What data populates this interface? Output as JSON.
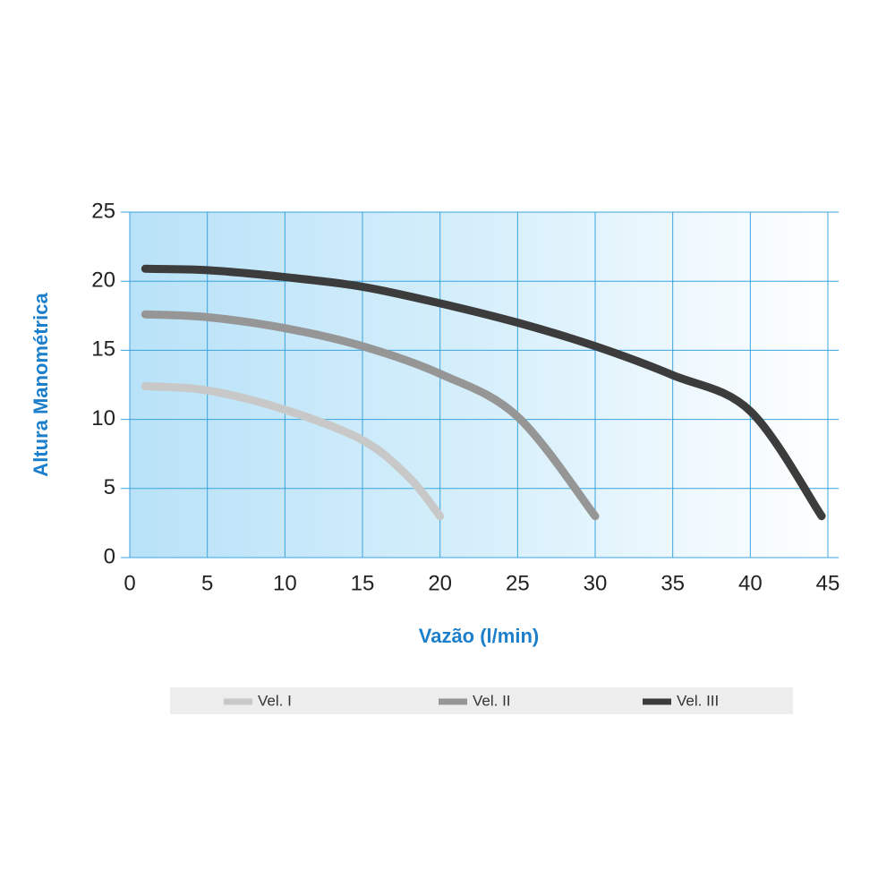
{
  "chart_data": {
    "type": "line",
    "x_label": "Vazão (l/min)",
    "y_label": "Altura Manométrica",
    "xlim": [
      0,
      45
    ],
    "xticks": [
      0,
      5,
      10,
      15,
      20,
      25,
      30,
      35,
      40,
      45
    ],
    "ylim": [
      0,
      25
    ],
    "yticks": [
      0,
      5,
      10,
      15,
      20,
      25
    ],
    "grid": true,
    "series": [
      {
        "name": "Vel. I",
        "color": "#c8c8c8",
        "x": [
          1,
          5,
          10,
          15,
          18,
          20
        ],
        "values": [
          12.4,
          12.1,
          10.7,
          8.5,
          5.8,
          3
        ]
      },
      {
        "name": "Vel. II",
        "color": "#969696",
        "x": [
          1,
          5,
          10,
          15,
          20,
          25,
          30
        ],
        "values": [
          17.6,
          17.4,
          16.6,
          15.3,
          13.3,
          10.2,
          3
        ]
      },
      {
        "name": "Vel. III",
        "color": "#3c3c3c",
        "x": [
          1,
          5,
          10,
          15,
          20,
          25,
          30,
          35,
          40,
          44.6
        ],
        "values": [
          20.9,
          20.8,
          20.3,
          19.6,
          18.4,
          17.0,
          15.3,
          13.2,
          10.6,
          3
        ]
      }
    ]
  }
}
